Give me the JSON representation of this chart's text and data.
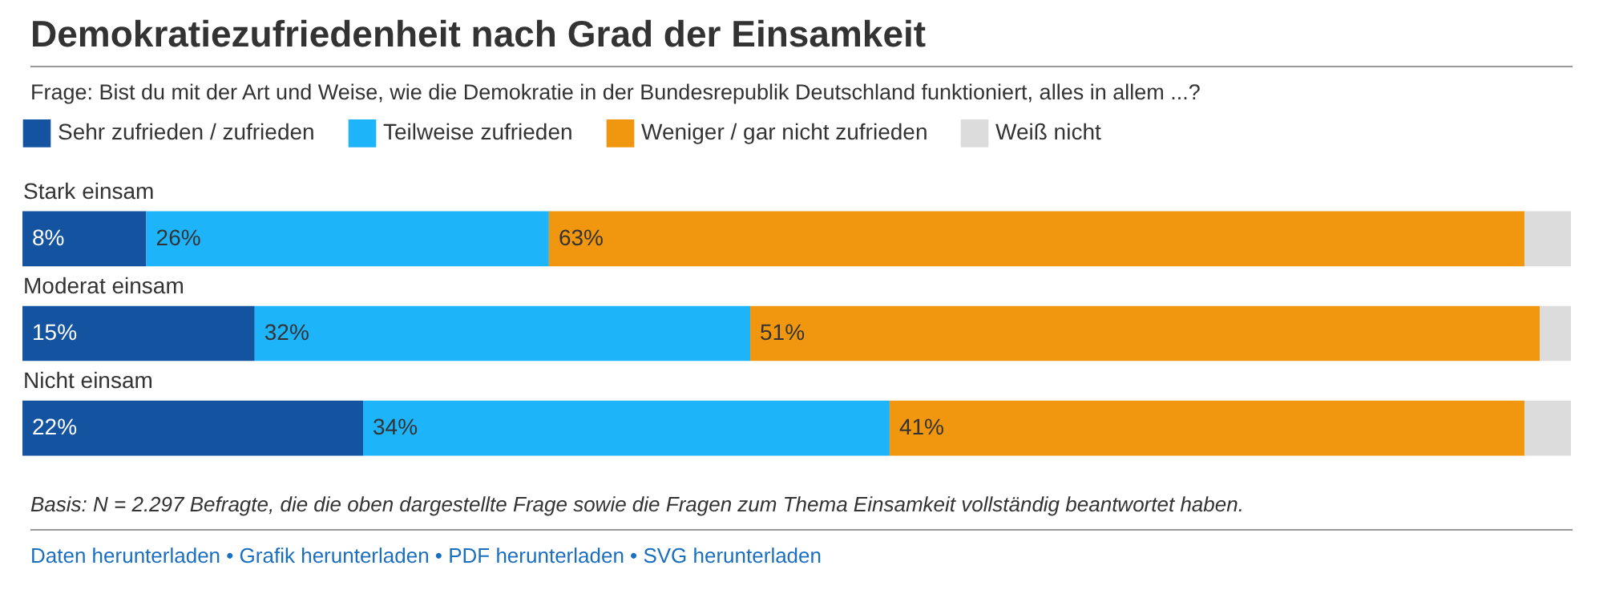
{
  "chart_data": {
    "type": "bar",
    "orientation": "horizontal",
    "stacked": true,
    "title": "Demokratiezufriedenheit nach Grad der Einsamkeit",
    "subtitle": "Frage: Bist du mit der Art und Weise, wie die Demokratie in der Bundesrepublik Deutschland funktioniert, alles in allem ...?",
    "categories": [
      "Stark einsam",
      "Moderat einsam",
      "Nicht einsam"
    ],
    "series": [
      {
        "name": "Sehr zufrieden / zufrieden",
        "color": "#1453a0",
        "values": [
          8,
          15,
          22
        ],
        "value_labels": [
          "8%",
          "15%",
          "22%"
        ]
      },
      {
        "name": "Teilweise zufrieden",
        "color": "#1eb4fa",
        "values": [
          26,
          32,
          34
        ],
        "value_labels": [
          "26%",
          "32%",
          "34%"
        ]
      },
      {
        "name": "Weniger / gar nicht zufrieden",
        "color": "#f0960f",
        "values": [
          63,
          51,
          41
        ],
        "value_labels": [
          "63%",
          "51%",
          "41%"
        ]
      },
      {
        "name": "Weiß nicht",
        "color": "#dcdcdc",
        "values": [
          3,
          2,
          3
        ],
        "value_labels": [
          null,
          null,
          null
        ]
      }
    ],
    "legend": "top left",
    "annotations": [
      "Basis: N = 2.297 Befragte, die die oben dargestellte Frage sowie die Fragen zum Thema Einsamkeit vollständig beantwortet haben.",
      "Daten herunterladen • Grafik herunterladen • PDF herunterladen • SVG herunterladen"
    ]
  }
}
